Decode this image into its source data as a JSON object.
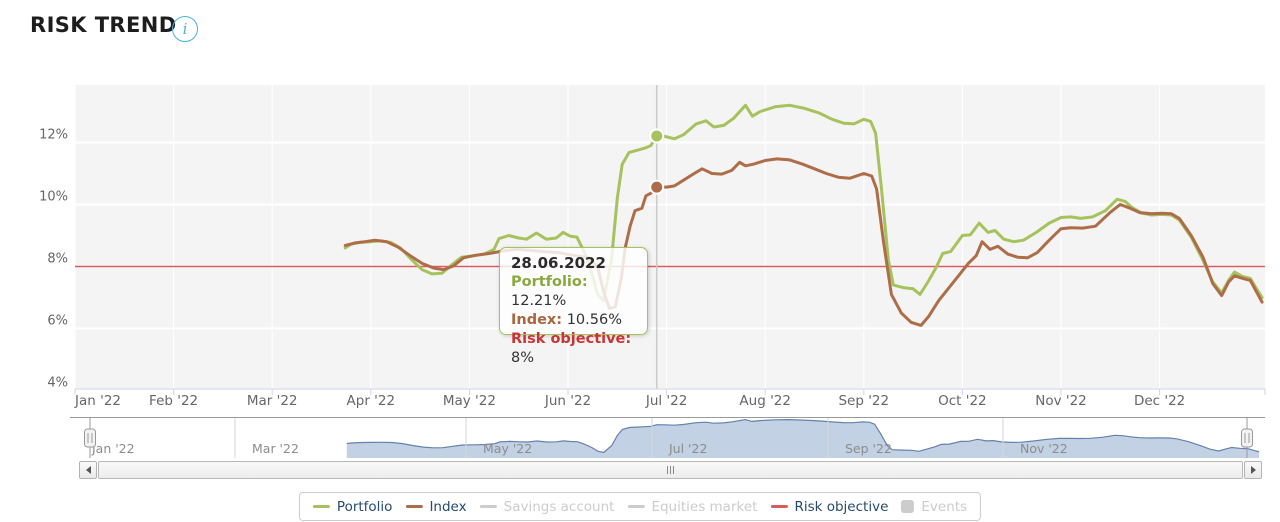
{
  "header": {
    "title": "RISK TREND",
    "info_glyph": "i"
  },
  "colors": {
    "plot_bg": "#f4f4f4",
    "grid": "#ffffff",
    "axis_line": "#ccd6eb",
    "crosshair": "#cccccc",
    "axis_label": "#666666",
    "nav_label": "#8c8c8c",
    "legend_text": "#274b6d",
    "disabled": "#cccccc",
    "portfolio": "#a6c25c",
    "index": "#ae6d49",
    "risk": "#d75c5c",
    "nav_area_fill": "#b9c9df",
    "nav_area_line": "#6581ad",
    "nav_outline": "#999999",
    "title": "#1d1d1d",
    "info": "#49b3da"
  },
  "chart_data": {
    "type": "line",
    "title": "RISK TREND",
    "xlabel": "",
    "ylabel": "",
    "y_unit": "%",
    "ylim": [
      4.05,
      13.85
    ],
    "grid": true,
    "legend_position": "bottom",
    "y_ticks": [
      {
        "value": 12,
        "label": "12%"
      },
      {
        "value": 10,
        "label": "10%"
      },
      {
        "value": 8,
        "label": "8%"
      },
      {
        "value": 6,
        "label": "6%"
      },
      {
        "value": 4,
        "label": "4%"
      }
    ],
    "x_tick_labels": [
      "Jan '22",
      "Feb '22",
      "Mar '22",
      "Apr '22",
      "May '22",
      "Jun '22",
      "Jul '22",
      "Aug '22",
      "Sep '22",
      "Oct '22",
      "Nov '22",
      "Dec '22"
    ],
    "risk_objective_value": 8,
    "highlight": {
      "date": "28.06.2022",
      "month_x": 5.9,
      "portfolio": 12.21,
      "index": 10.56
    },
    "series": [
      {
        "name": "Portfolio",
        "color": "#a6c25c",
        "enabled": true,
        "points": [
          [
            2.74,
            8.6
          ],
          [
            2.8,
            8.72
          ],
          [
            2.9,
            8.78
          ],
          [
            3.0,
            8.8
          ],
          [
            3.1,
            8.83
          ],
          [
            3.2,
            8.78
          ],
          [
            3.3,
            8.6
          ],
          [
            3.42,
            8.2
          ],
          [
            3.52,
            7.9
          ],
          [
            3.62,
            7.76
          ],
          [
            3.72,
            7.78
          ],
          [
            3.82,
            8.05
          ],
          [
            3.92,
            8.3
          ],
          [
            4.05,
            8.35
          ],
          [
            4.15,
            8.4
          ],
          [
            4.25,
            8.55
          ],
          [
            4.3,
            8.9
          ],
          [
            4.4,
            9.0
          ],
          [
            4.5,
            8.92
          ],
          [
            4.58,
            8.88
          ],
          [
            4.68,
            9.08
          ],
          [
            4.78,
            8.88
          ],
          [
            4.88,
            8.92
          ],
          [
            4.95,
            9.1
          ],
          [
            5.02,
            8.98
          ],
          [
            5.09,
            8.95
          ],
          [
            5.16,
            8.5
          ],
          [
            5.24,
            7.8
          ],
          [
            5.3,
            7.1
          ],
          [
            5.36,
            6.9
          ],
          [
            5.44,
            8.2
          ],
          [
            5.5,
            10.2
          ],
          [
            5.55,
            11.3
          ],
          [
            5.62,
            11.68
          ],
          [
            5.7,
            11.75
          ],
          [
            5.78,
            11.82
          ],
          [
            5.84,
            11.9
          ],
          [
            5.9,
            12.21
          ],
          [
            5.98,
            12.2
          ],
          [
            6.08,
            12.12
          ],
          [
            6.17,
            12.25
          ],
          [
            6.3,
            12.6
          ],
          [
            6.4,
            12.7
          ],
          [
            6.48,
            12.5
          ],
          [
            6.58,
            12.55
          ],
          [
            6.68,
            12.78
          ],
          [
            6.8,
            13.2
          ],
          [
            6.87,
            12.85
          ],
          [
            6.95,
            13.0
          ],
          [
            7.1,
            13.15
          ],
          [
            7.25,
            13.2
          ],
          [
            7.4,
            13.1
          ],
          [
            7.55,
            12.95
          ],
          [
            7.68,
            12.75
          ],
          [
            7.8,
            12.62
          ],
          [
            7.9,
            12.6
          ],
          [
            8.0,
            12.75
          ],
          [
            8.07,
            12.68
          ],
          [
            8.12,
            12.3
          ],
          [
            8.18,
            10.5
          ],
          [
            8.25,
            8.2
          ],
          [
            8.3,
            7.4
          ],
          [
            8.4,
            7.32
          ],
          [
            8.5,
            7.28
          ],
          [
            8.57,
            7.1
          ],
          [
            8.65,
            7.5
          ],
          [
            8.73,
            7.95
          ],
          [
            8.8,
            8.42
          ],
          [
            8.88,
            8.48
          ],
          [
            9.0,
            9.0
          ],
          [
            9.08,
            9.02
          ],
          [
            9.17,
            9.4
          ],
          [
            9.26,
            9.1
          ],
          [
            9.33,
            9.16
          ],
          [
            9.42,
            8.88
          ],
          [
            9.52,
            8.8
          ],
          [
            9.62,
            8.85
          ],
          [
            9.75,
            9.1
          ],
          [
            9.88,
            9.4
          ],
          [
            10.0,
            9.58
          ],
          [
            10.1,
            9.6
          ],
          [
            10.2,
            9.55
          ],
          [
            10.32,
            9.6
          ],
          [
            10.45,
            9.8
          ],
          [
            10.57,
            10.17
          ],
          [
            10.65,
            10.1
          ],
          [
            10.72,
            9.9
          ],
          [
            10.82,
            9.72
          ],
          [
            10.92,
            9.66
          ],
          [
            11.02,
            9.68
          ],
          [
            11.12,
            9.66
          ],
          [
            11.2,
            9.5
          ],
          [
            11.32,
            8.95
          ],
          [
            11.44,
            8.2
          ],
          [
            11.54,
            7.5
          ],
          [
            11.63,
            7.15
          ],
          [
            11.7,
            7.55
          ],
          [
            11.76,
            7.82
          ],
          [
            11.84,
            7.68
          ],
          [
            11.92,
            7.62
          ],
          [
            11.98,
            7.3
          ],
          [
            12.04,
            7.0
          ]
        ]
      },
      {
        "name": "Index",
        "color": "#ae6d49",
        "enabled": true,
        "points": [
          [
            2.74,
            8.68
          ],
          [
            2.84,
            8.76
          ],
          [
            2.94,
            8.8
          ],
          [
            3.04,
            8.85
          ],
          [
            3.16,
            8.8
          ],
          [
            3.28,
            8.62
          ],
          [
            3.4,
            8.35
          ],
          [
            3.52,
            8.1
          ],
          [
            3.64,
            7.95
          ],
          [
            3.74,
            7.9
          ],
          [
            3.84,
            8.02
          ],
          [
            3.94,
            8.28
          ],
          [
            4.06,
            8.36
          ],
          [
            4.2,
            8.42
          ],
          [
            4.34,
            8.5
          ],
          [
            4.48,
            8.55
          ],
          [
            4.62,
            8.52
          ],
          [
            4.76,
            8.48
          ],
          [
            4.9,
            8.45
          ],
          [
            5.02,
            8.38
          ],
          [
            5.14,
            8.32
          ],
          [
            5.2,
            8.3
          ],
          [
            5.3,
            8.0
          ],
          [
            5.36,
            7.2
          ],
          [
            5.42,
            6.65
          ],
          [
            5.48,
            6.7
          ],
          [
            5.54,
            7.6
          ],
          [
            5.58,
            8.6
          ],
          [
            5.63,
            9.3
          ],
          [
            5.68,
            9.8
          ],
          [
            5.75,
            9.88
          ],
          [
            5.79,
            10.28
          ],
          [
            5.85,
            10.38
          ],
          [
            5.9,
            10.56
          ],
          [
            6.0,
            10.56
          ],
          [
            6.08,
            10.6
          ],
          [
            6.18,
            10.8
          ],
          [
            6.28,
            11.0
          ],
          [
            6.36,
            11.15
          ],
          [
            6.46,
            11.0
          ],
          [
            6.56,
            10.98
          ],
          [
            6.66,
            11.1
          ],
          [
            6.74,
            11.36
          ],
          [
            6.8,
            11.25
          ],
          [
            6.88,
            11.3
          ],
          [
            7.0,
            11.42
          ],
          [
            7.12,
            11.47
          ],
          [
            7.25,
            11.44
          ],
          [
            7.38,
            11.3
          ],
          [
            7.5,
            11.15
          ],
          [
            7.62,
            11.0
          ],
          [
            7.74,
            10.88
          ],
          [
            7.86,
            10.85
          ],
          [
            8.0,
            11.0
          ],
          [
            8.08,
            10.92
          ],
          [
            8.13,
            10.5
          ],
          [
            8.2,
            8.8
          ],
          [
            8.28,
            7.1
          ],
          [
            8.38,
            6.5
          ],
          [
            8.48,
            6.2
          ],
          [
            8.58,
            6.1
          ],
          [
            8.66,
            6.4
          ],
          [
            8.76,
            6.9
          ],
          [
            8.86,
            7.3
          ],
          [
            8.96,
            7.7
          ],
          [
            9.06,
            8.1
          ],
          [
            9.14,
            8.35
          ],
          [
            9.2,
            8.8
          ],
          [
            9.28,
            8.55
          ],
          [
            9.36,
            8.65
          ],
          [
            9.46,
            8.4
          ],
          [
            9.56,
            8.3
          ],
          [
            9.66,
            8.28
          ],
          [
            9.76,
            8.45
          ],
          [
            9.88,
            8.85
          ],
          [
            10.0,
            9.22
          ],
          [
            10.1,
            9.25
          ],
          [
            10.22,
            9.24
          ],
          [
            10.35,
            9.3
          ],
          [
            10.5,
            9.75
          ],
          [
            10.6,
            10.0
          ],
          [
            10.7,
            9.88
          ],
          [
            10.8,
            9.74
          ],
          [
            10.92,
            9.7
          ],
          [
            11.02,
            9.72
          ],
          [
            11.12,
            9.7
          ],
          [
            11.2,
            9.55
          ],
          [
            11.32,
            9.0
          ],
          [
            11.44,
            8.3
          ],
          [
            11.54,
            7.45
          ],
          [
            11.63,
            7.06
          ],
          [
            11.7,
            7.5
          ],
          [
            11.76,
            7.7
          ],
          [
            11.84,
            7.62
          ],
          [
            11.92,
            7.55
          ],
          [
            11.98,
            7.2
          ],
          [
            12.04,
            6.85
          ]
        ]
      },
      {
        "name": "Savings account",
        "color": "#cccccc",
        "enabled": false,
        "points": []
      },
      {
        "name": "Equities market",
        "color": "#cccccc",
        "enabled": false,
        "points": []
      },
      {
        "name": "Risk objective",
        "color": "#d75c5c",
        "enabled": true,
        "type": "hline",
        "value": 8
      }
    ],
    "navigator": {
      "labels": [
        "Jan '22",
        "Mar '22",
        "May '22",
        "Jul '22",
        "Sep '22",
        "Nov '22"
      ],
      "source_series": "Portfolio"
    }
  },
  "tooltip": {
    "date": "28.06.2022",
    "rows": [
      {
        "label": "Portfolio:",
        "value": " 12.21%",
        "color": "#89a93e"
      },
      {
        "label": "Index:",
        "value": " 10.56%",
        "color": "#a9663f"
      },
      {
        "label": "Risk objective:",
        "value": " 8%",
        "color": "#cb3434"
      }
    ]
  },
  "legend": {
    "items": [
      {
        "label": "Portfolio",
        "color": "#a6c25c",
        "marker": "line",
        "enabled": true
      },
      {
        "label": "Index",
        "color": "#ae6d49",
        "marker": "line",
        "enabled": true
      },
      {
        "label": "Savings account",
        "color": "#cccccc",
        "marker": "line",
        "enabled": false
      },
      {
        "label": "Equities market",
        "color": "#cccccc",
        "marker": "line",
        "enabled": false
      },
      {
        "label": "Risk objective",
        "color": "#d75c5c",
        "marker": "line",
        "enabled": true
      },
      {
        "label": "Events",
        "color": "#cccccc",
        "marker": "square",
        "enabled": false
      }
    ]
  }
}
